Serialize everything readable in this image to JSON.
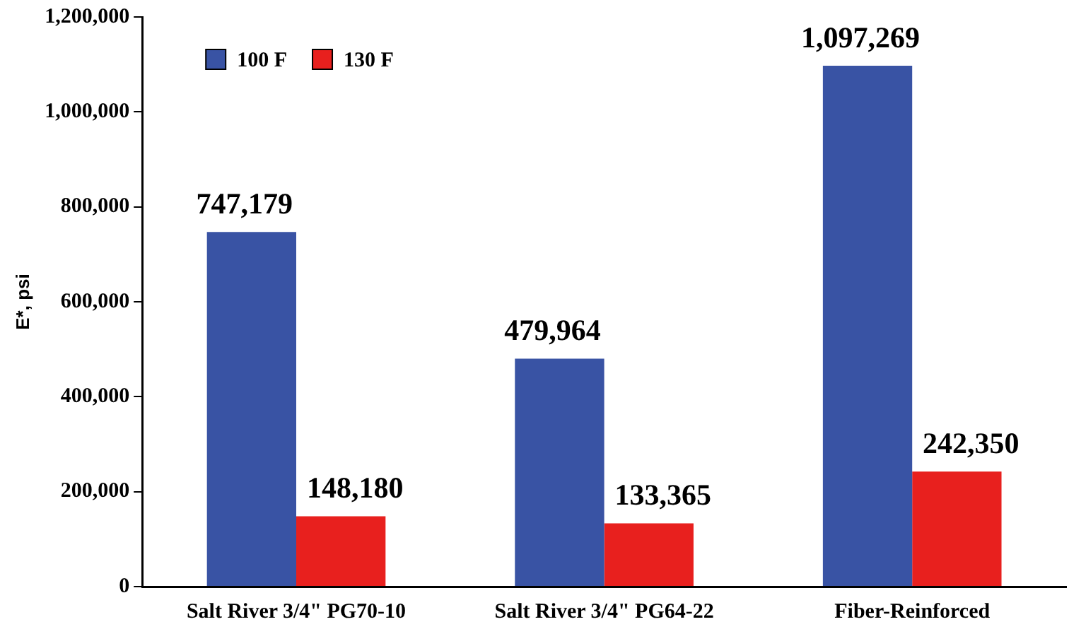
{
  "chart_data": {
    "type": "bar",
    "ylabel": "E*, psi",
    "categories": [
      "Salt River 3/4\" PG70-10",
      "Salt River 3/4\" PG64-22",
      "Fiber-Reinforced"
    ],
    "series": [
      {
        "name": "100 F",
        "color": "#3953a4",
        "values": [
          747179,
          479964,
          1097269
        ],
        "value_labels": [
          "747,179",
          "479,964",
          "1,097,269"
        ]
      },
      {
        "name": "130 F",
        "color": "#e8201e",
        "values": [
          148180,
          133365,
          242350
        ],
        "value_labels": [
          "148,180",
          "133,365",
          "242,350"
        ]
      }
    ],
    "ylim": [
      0,
      1200000
    ],
    "yticks": [
      {
        "value": 0,
        "label": "0"
      },
      {
        "value": 200000,
        "label": "200,000"
      },
      {
        "value": 400000,
        "label": "400,000"
      },
      {
        "value": 600000,
        "label": "600,000"
      },
      {
        "value": 800000,
        "label": "800,000"
      },
      {
        "value": 1000000,
        "label": "1,000,000"
      },
      {
        "value": 1200000,
        "label": "1,200,000"
      }
    ],
    "grid": false,
    "legend": "top left"
  }
}
